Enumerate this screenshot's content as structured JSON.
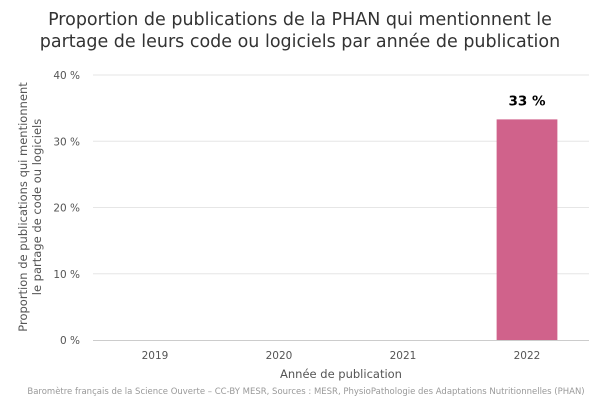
{
  "chart_data": {
    "type": "bar",
    "title_lines": [
      "Proportion de publications de la PHAN qui mentionnent le",
      "partage de leurs code ou logiciels par année de publication"
    ],
    "xlabel": "Année de publication",
    "ylabel_lines": [
      "Proportion de publications qui mentionnent",
      "le partage de code ou logiciels"
    ],
    "categories": [
      "2019",
      "2020",
      "2021",
      "2022"
    ],
    "values": [
      0,
      0,
      0,
      33.3
    ],
    "data_labels": [
      "",
      "",
      "",
      "33 %"
    ],
    "ylim": [
      0,
      40
    ],
    "yticks": [
      {
        "value": 0,
        "label": "0 %"
      },
      {
        "value": 10,
        "label": "10 %"
      },
      {
        "value": 20,
        "label": "20 %"
      },
      {
        "value": 30,
        "label": "30 %"
      },
      {
        "value": 40,
        "label": "40 %"
      }
    ],
    "bar_color": "#d0628b",
    "grid": true,
    "credits": "Baromètre français de la Science Ouverte – CC-BY MESR, Sources : MESR, PhysioPathologie des Adaptations Nutritionnelles (PHAN)"
  }
}
